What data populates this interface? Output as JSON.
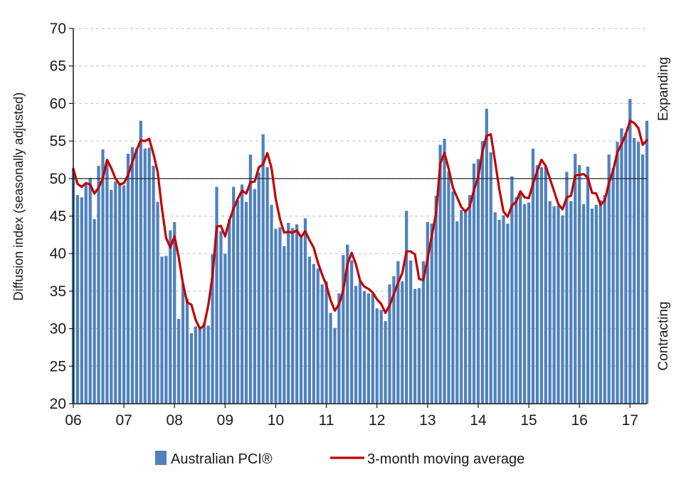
{
  "chart_data": {
    "type": "bar",
    "title": "",
    "ylabel": "Diffusion index (seasonally adjusted)",
    "xlabel": "",
    "ylim": [
      20,
      70
    ],
    "yticks": [
      20,
      25,
      30,
      35,
      40,
      45,
      50,
      55,
      60,
      65,
      70
    ],
    "xtick_labels": [
      "06",
      "07",
      "08",
      "09",
      "10",
      "11",
      "12",
      "13",
      "14",
      "15",
      "16",
      "17"
    ],
    "reference_line": 50,
    "grid": true,
    "side_labels": {
      "top": "Expanding",
      "bottom": "Contracting"
    },
    "legend_position": "bottom",
    "start": "2006-01",
    "series": [
      {
        "name": "Australian PCI®",
        "kind": "bar",
        "color": "#4f81bd",
        "values": [
          51.3,
          47.8,
          47.5,
          49.2,
          50.1,
          44.6,
          51.7,
          53.9,
          51.9,
          48.5,
          49.6,
          49.4,
          49.1,
          53.3,
          54.2,
          54.0,
          57.7,
          54.0,
          54.1,
          51.7,
          46.9,
          39.6,
          39.7,
          43.1,
          44.2,
          31.3,
          36.0,
          34.0,
          29.4,
          30.3,
          30.0,
          30.8,
          30.4,
          39.9,
          48.9,
          43.0,
          40.0,
          44.6,
          48.9,
          47.1,
          49.2,
          46.9,
          53.2,
          48.6,
          50.8,
          55.9,
          51.5,
          46.5,
          43.3,
          43.5,
          41.0,
          44.1,
          43.4,
          43.9,
          42.1,
          44.7,
          39.6,
          38.6,
          38.0,
          35.9,
          36.3,
          32.1,
          30.1,
          34.7,
          39.8,
          41.2,
          39.1,
          35.7,
          36.4,
          35.0,
          34.7,
          34.6,
          32.7,
          32.5,
          31.0,
          35.9,
          37.0,
          39.0,
          36.3,
          45.7,
          39.1,
          35.3,
          35.4,
          39.0,
          44.2,
          44.0,
          47.7,
          54.5,
          55.3,
          50.9,
          48.3,
          44.3,
          45.8,
          45.6,
          47.8,
          52.0,
          52.6,
          55.0,
          59.3,
          53.5,
          45.5,
          44.5,
          45.1,
          44.0,
          50.3,
          47.5,
          48.1,
          46.6,
          46.8,
          54.0,
          51.8,
          51.5,
          51.6,
          47.0,
          46.3,
          46.4,
          45.1,
          50.9,
          47.0,
          53.3,
          51.8,
          46.6,
          51.6,
          46.0,
          46.5,
          47.1,
          47.8,
          53.2,
          51.4,
          54.9,
          56.7,
          56.1,
          60.6,
          55.4,
          54.9,
          53.2,
          57.7
        ]
      },
      {
        "name": "3-month moving average",
        "kind": "line",
        "color": "#c00000",
        "values": [
          51.3,
          49.3,
          48.9,
          49.4,
          49.2,
          48.0,
          48.8,
          50.0,
          52.5,
          51.4,
          50.0,
          49.2,
          49.4,
          50.5,
          52.2,
          53.8,
          55.1,
          55.0,
          55.3,
          53.3,
          50.9,
          46.1,
          42.1,
          40.8,
          42.3,
          39.5,
          36.0,
          33.5,
          33.2,
          31.2,
          30.0,
          30.4,
          33.1,
          37.0,
          43.6,
          43.7,
          42.3,
          44.4,
          46.0,
          47.3,
          48.4,
          48.0,
          49.5,
          49.6,
          51.5,
          51.9,
          53.4,
          51.4,
          47.3,
          44.6,
          42.8,
          42.9,
          42.8,
          43.1,
          42.2,
          43.0,
          41.8,
          40.8,
          38.8,
          37.2,
          35.8,
          33.8,
          32.4,
          33.2,
          35.1,
          38.6,
          40.1,
          38.6,
          36.4,
          35.6,
          35.3,
          34.8,
          33.9,
          33.3,
          32.1,
          33.1,
          34.6,
          36.1,
          37.4,
          40.3,
          40.3,
          39.9,
          36.6,
          36.5,
          39.3,
          42.4,
          45.3,
          52.0,
          53.4,
          51.3,
          48.8,
          47.5,
          46.2,
          45.6,
          46.3,
          48.5,
          50.2,
          53.6,
          55.7,
          55.9,
          52.3,
          48.6,
          45.6,
          44.9,
          46.4,
          46.9,
          48.3,
          47.5,
          47.4,
          49.3,
          51.0,
          52.5,
          51.7,
          50.0,
          48.3,
          46.6,
          45.9,
          47.5,
          47.7,
          50.4,
          50.5,
          50.6,
          50.1,
          48.1,
          48.0,
          46.5,
          47.1,
          49.4,
          51.1,
          53.5,
          54.6,
          55.9,
          57.7,
          57.4,
          56.7,
          54.5,
          55.1
        ]
      }
    ]
  }
}
